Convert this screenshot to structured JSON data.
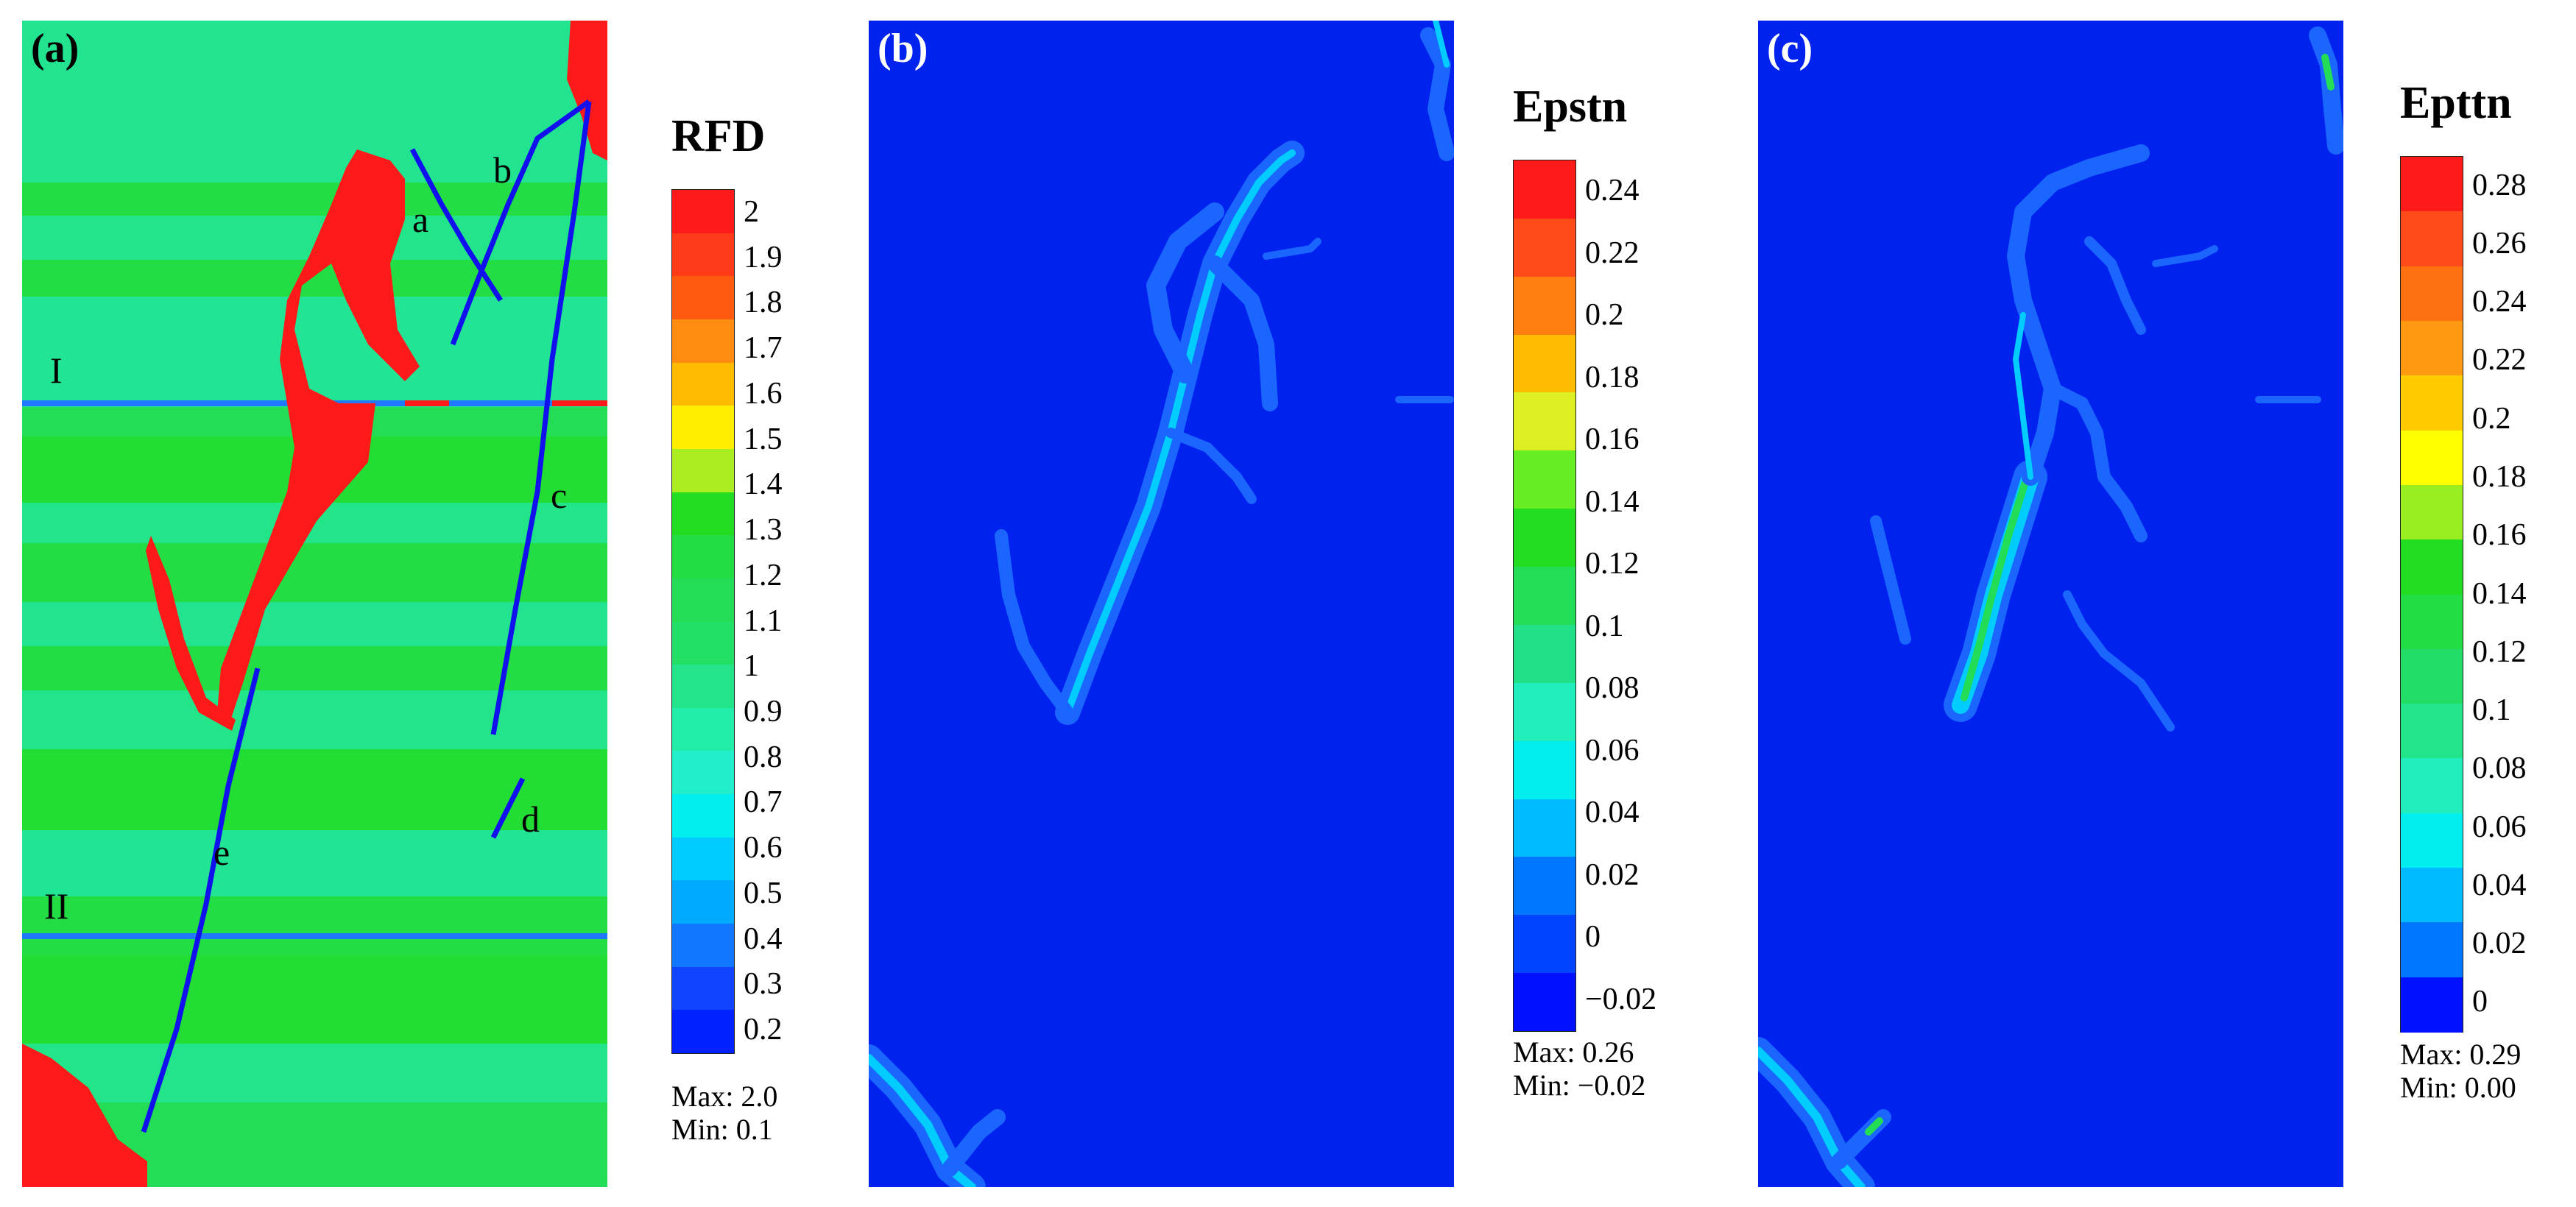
{
  "panels": {
    "a": {
      "label": "(a)",
      "legend": {
        "title": "RFD",
        "ticks": [
          "2",
          "1.9",
          "1.8",
          "1.7",
          "1.6",
          "1.5",
          "1.4",
          "1.3",
          "1.2",
          "1.1",
          "1",
          "0.9",
          "0.8",
          "0.7",
          "0.6",
          "0.5",
          "0.4",
          "0.3",
          "0.2"
        ],
        "colors": [
          "#ff1a1a",
          "#ff3b1a",
          "#ff5a10",
          "#ff8c10",
          "#ffbb00",
          "#ffee00",
          "#aaee22",
          "#22dd22",
          "#22dd44",
          "#22dd55",
          "#22e066",
          "#22e488",
          "#22eeaa",
          "#22eecc",
          "#00eeee",
          "#00ccff",
          "#00aaff",
          "#1177ff",
          "#1144ff",
          "#0022ff"
        ],
        "max": "Max:  2.0",
        "min": "Min:  0.1"
      },
      "crack_labels": {
        "a": "a",
        "b": "b",
        "c": "c",
        "d": "d",
        "e": "e",
        "layer_1": "I",
        "layer_2": "II"
      }
    },
    "b": {
      "label": "(b)",
      "legend": {
        "title": "Epstn",
        "ticks": [
          "0.24",
          "0.22",
          "0.2",
          "0.18",
          "0.16",
          "0.14",
          "0.12",
          "0.1",
          "0.08",
          "0.06",
          "0.04",
          "0.02",
          "0",
          "−0.02"
        ],
        "colors": [
          "#ff1a1a",
          "#ff4a1a",
          "#ff8010",
          "#ffbb00",
          "#ddee22",
          "#66ee22",
          "#22dd22",
          "#22dd55",
          "#22e088",
          "#22eebb",
          "#00eeee",
          "#00bbff",
          "#0077ff",
          "#0044ff",
          "#0011ff"
        ],
        "max": "Max:  0.26",
        "min": "Min:  −0.02"
      }
    },
    "c": {
      "label": "(c)",
      "legend": {
        "title": "Epttn",
        "ticks": [
          "0.28",
          "0.26",
          "0.24",
          "0.22",
          "0.2",
          "0.18",
          "0.16",
          "0.14",
          "0.12",
          "0.1",
          "0.08",
          "0.06",
          "0.04",
          "0.02",
          "0"
        ],
        "colors": [
          "#ff1a1a",
          "#ff4a1a",
          "#ff7010",
          "#ff9a10",
          "#ffcc00",
          "#ffff00",
          "#99ee22",
          "#22dd22",
          "#22dd44",
          "#22dd66",
          "#22e488",
          "#22eebb",
          "#00eeee",
          "#00bbff",
          "#0077ff",
          "#0011ff"
        ],
        "max": "Max:  0.29",
        "min": "Min:  0.00"
      }
    }
  }
}
